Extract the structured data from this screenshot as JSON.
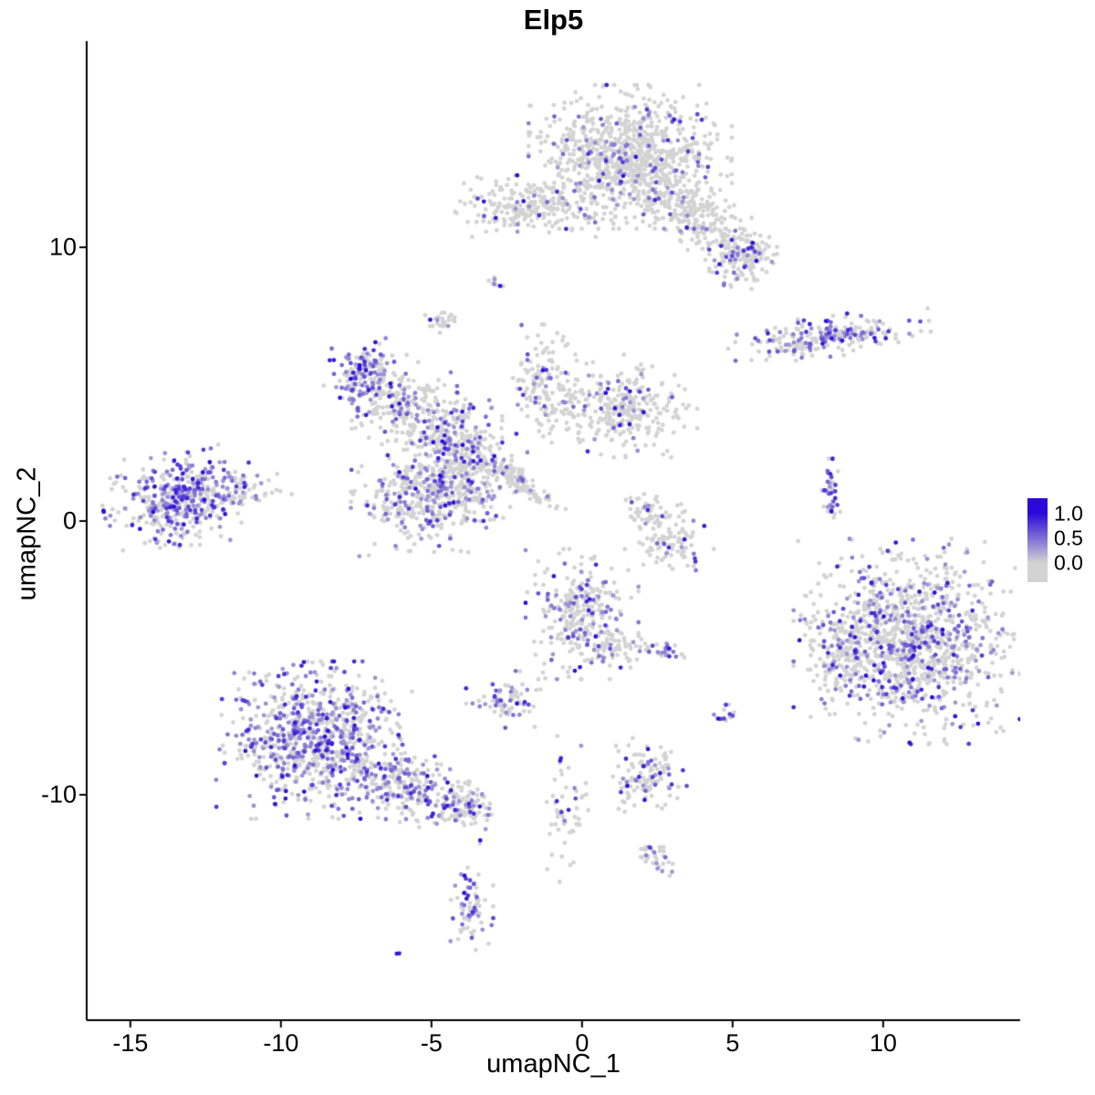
{
  "title": "Elp5",
  "axes": {
    "xlabel": "umapNC_1",
    "ylabel": "umapNC_2",
    "x_ticks": [
      -15,
      -10,
      -5,
      0,
      5,
      10
    ],
    "y_ticks": [
      10,
      0,
      -10
    ],
    "xlim": [
      -16.45,
      14.55
    ],
    "ylim": [
      -18.23,
      17.53
    ]
  },
  "legend": {
    "labels": [
      "1.0",
      "0.5",
      "0.0"
    ]
  },
  "colors": {
    "background": "#FFFFFF",
    "axis": "#000000",
    "low": "#D3D3D3",
    "high": "#2B0AD9"
  },
  "chart_data": {
    "type": "scatter",
    "title": "Elp5",
    "xlabel": "umapNC_1",
    "ylabel": "umapNC_2",
    "xlim": [
      -16.45,
      14.55
    ],
    "ylim": [
      -18.23,
      17.53
    ],
    "grid": false,
    "legend_position": "right",
    "color_scale": {
      "low_value": 0.0,
      "high_value": 1.0,
      "low_color": "#D3D3D3",
      "high_color": "#2B0AD9"
    },
    "point_radius": 2.4,
    "seed": 7,
    "clusters": [
      {
        "name": "top-main",
        "cx": 1.6,
        "cy": 13.3,
        "sx": 1.35,
        "sy": 1.05,
        "n": 900,
        "frac": 0.1
      },
      {
        "name": "top-right-arm",
        "cx": 3.9,
        "cy": 11.0,
        "sx": 1.1,
        "sy": 0.45,
        "n": 260,
        "frac": 0.12,
        "rot": -35
      },
      {
        "name": "top-right-knob",
        "cx": 5.35,
        "cy": 9.6,
        "sx": 0.45,
        "sy": 0.45,
        "n": 130,
        "frac": 0.18
      },
      {
        "name": "top-left-band",
        "cx": -1.6,
        "cy": 11.5,
        "sx": 1.2,
        "sy": 0.45,
        "n": 230,
        "frac": 0.1
      },
      {
        "name": "upper-outlier-dot",
        "cx": -2.85,
        "cy": 8.7,
        "sx": 0.12,
        "sy": 0.15,
        "n": 10,
        "frac": 0.4
      },
      {
        "name": "small-upper-mid",
        "cx": -4.6,
        "cy": 7.25,
        "sx": 0.3,
        "sy": 0.2,
        "n": 28,
        "frac": 0.12
      },
      {
        "name": "right-band",
        "cx": 8.2,
        "cy": 6.75,
        "sx": 1.35,
        "sy": 0.3,
        "n": 230,
        "frac": 0.38,
        "rot": 7
      },
      {
        "name": "midleft-purple",
        "cx": -7.2,
        "cy": 5.3,
        "sx": 0.55,
        "sy": 0.55,
        "n": 170,
        "frac": 0.55
      },
      {
        "name": "midleft-branch",
        "cx": -5.9,
        "cy": 4.3,
        "sx": 0.7,
        "sy": 0.6,
        "n": 170,
        "frac": 0.3
      },
      {
        "name": "central-upper",
        "cx": -4.4,
        "cy": 3.0,
        "sx": 0.7,
        "sy": 0.8,
        "n": 260,
        "frac": 0.3
      },
      {
        "name": "central-lower",
        "cx": -5.3,
        "cy": 0.8,
        "sx": 0.95,
        "sy": 0.85,
        "n": 340,
        "frac": 0.3
      },
      {
        "name": "central-right-lobe",
        "cx": -3.6,
        "cy": 1.6,
        "sx": 0.6,
        "sy": 0.8,
        "n": 200,
        "frac": 0.25
      },
      {
        "name": "diag-streak",
        "cx": -2.1,
        "cy": 1.5,
        "sx": 0.75,
        "sy": 0.18,
        "n": 110,
        "frac": 0.12,
        "rot": -40
      },
      {
        "name": "mid-vertical-band",
        "cx": -1.3,
        "cy": 4.8,
        "sx": 0.45,
        "sy": 0.95,
        "n": 130,
        "frac": 0.2
      },
      {
        "name": "mid-right-blob",
        "cx": 1.2,
        "cy": 4.2,
        "sx": 1.05,
        "sy": 0.75,
        "n": 320,
        "frac": 0.12
      },
      {
        "name": "far-left",
        "cx": -13.3,
        "cy": 0.8,
        "sx": 1.05,
        "sy": 0.7,
        "n": 470,
        "frac": 0.45,
        "rot": 10
      },
      {
        "name": "far-left-tail",
        "cx": -11.2,
        "cy": 1.2,
        "sx": 0.7,
        "sy": 0.25,
        "n": 40,
        "frac": 0.2
      },
      {
        "name": "c-arc-upper",
        "cx": 2.3,
        "cy": 0.3,
        "sx": 0.45,
        "sy": 0.35,
        "n": 60,
        "frac": 0.1
      },
      {
        "name": "c-arc-lower",
        "cx": 3.0,
        "cy": -0.8,
        "sx": 0.55,
        "sy": 0.4,
        "n": 90,
        "frac": 0.12
      },
      {
        "name": "right-vert-streak",
        "cx": 8.25,
        "cy": 0.9,
        "sx": 0.13,
        "sy": 0.55,
        "n": 45,
        "frac": 0.5
      },
      {
        "name": "big-right",
        "cx": 10.9,
        "cy": -4.4,
        "sx": 1.55,
        "sy": 1.5,
        "n": 1150,
        "frac": 0.28
      },
      {
        "name": "big-right-west-tail",
        "cx": 8.6,
        "cy": -4.6,
        "sx": 0.5,
        "sy": 0.9,
        "n": 90,
        "frac": 0.25
      },
      {
        "name": "center-bottom",
        "cx": 0.0,
        "cy": -3.4,
        "sx": 0.75,
        "sy": 0.95,
        "n": 300,
        "frac": 0.28
      },
      {
        "name": "center-bottom-arm",
        "cx": 1.3,
        "cy": -4.6,
        "sx": 0.6,
        "sy": 0.3,
        "n": 60,
        "frac": 0.15
      },
      {
        "name": "small-pair",
        "cx": 2.85,
        "cy": -4.8,
        "sx": 0.25,
        "sy": 0.15,
        "n": 22,
        "frac": 0.45
      },
      {
        "name": "bottomleft-main",
        "cx": -8.9,
        "cy": -8.0,
        "sx": 1.3,
        "sy": 1.15,
        "n": 850,
        "frac": 0.45
      },
      {
        "name": "bottomleft-tail",
        "cx": -5.6,
        "cy": -9.8,
        "sx": 1.1,
        "sy": 0.55,
        "n": 260,
        "frac": 0.3,
        "rot": -20
      },
      {
        "name": "bottomleft-tip",
        "cx": -4.0,
        "cy": -10.4,
        "sx": 0.45,
        "sy": 0.35,
        "n": 90,
        "frac": 0.25
      },
      {
        "name": "small-mid-left",
        "cx": -2.6,
        "cy": -6.6,
        "sx": 0.5,
        "sy": 0.45,
        "n": 75,
        "frac": 0.35
      },
      {
        "name": "tiny-right",
        "cx": 4.75,
        "cy": -7.0,
        "sx": 0.15,
        "sy": 0.3,
        "n": 14,
        "frac": 0.5
      },
      {
        "name": "small-bottom-mid",
        "cx": 2.2,
        "cy": -9.3,
        "sx": 0.55,
        "sy": 0.55,
        "n": 120,
        "frac": 0.25
      },
      {
        "name": "sparse-chain",
        "cx": -0.5,
        "cy": -10.6,
        "sx": 0.35,
        "sy": 1.1,
        "n": 55,
        "frac": 0.2
      },
      {
        "name": "tiny-bottom",
        "cx": 2.5,
        "cy": -12.3,
        "sx": 0.3,
        "sy": 0.28,
        "n": 32,
        "frac": 0.3
      },
      {
        "name": "bottom-small",
        "cx": -3.7,
        "cy": -14.0,
        "sx": 0.3,
        "sy": 0.75,
        "n": 70,
        "frac": 0.35
      },
      {
        "name": "outlier-dark",
        "cx": -6.1,
        "cy": -15.8,
        "sx": 0.05,
        "sy": 0.05,
        "n": 2,
        "frac": 1.0,
        "vmin": 0.9
      }
    ]
  }
}
